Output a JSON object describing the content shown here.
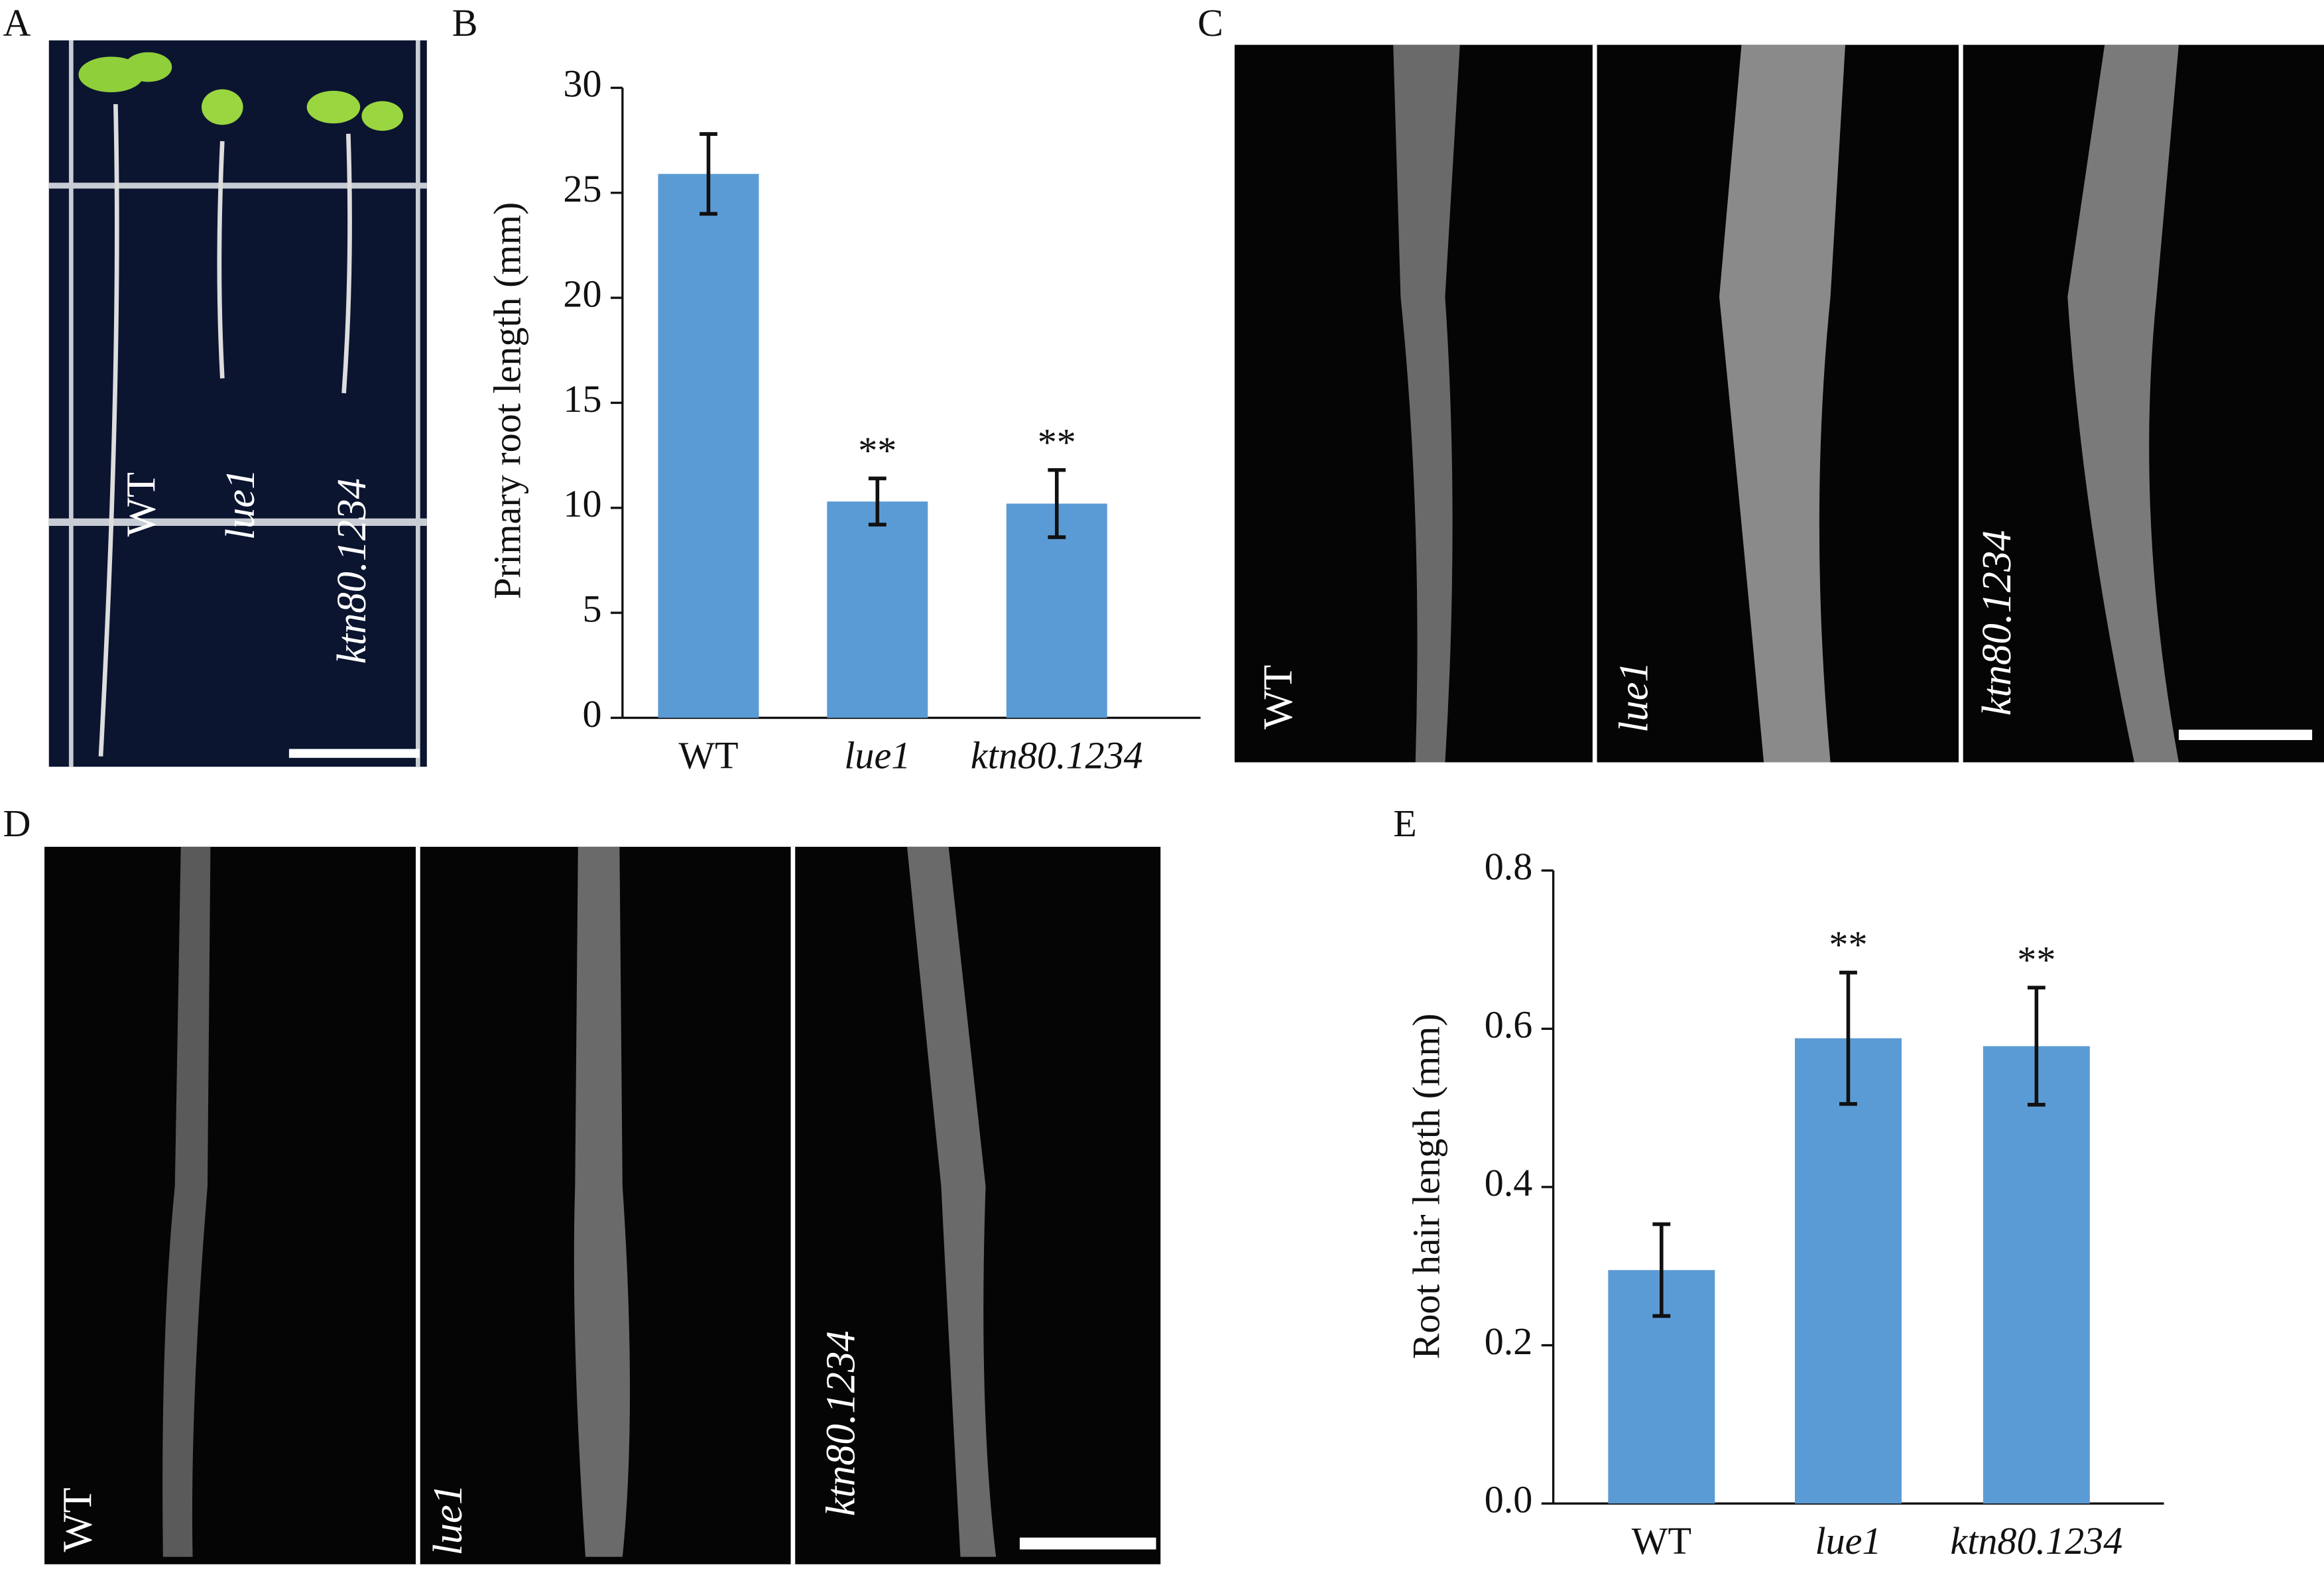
{
  "photo_panels": [
    {
      "letter": "A",
      "labels": [
        "WT",
        "lue1",
        "ktn80.1234"
      ]
    },
    {
      "letter": "C",
      "labels": [
        "WT",
        "lue1",
        "ktn80.1234"
      ]
    },
    {
      "letter": "D",
      "labels": [
        "WT",
        "lue1",
        "ktn80.1234"
      ]
    }
  ],
  "chart_data": [
    {
      "type": "bar",
      "panel": "B",
      "y_label": "Primary root length (mm)",
      "categories": [
        "WT",
        "lue1",
        "ktn80.1234"
      ],
      "values": [
        25.9,
        10.3,
        10.2
      ],
      "errors": [
        1.9,
        1.1,
        1.6
      ],
      "significance": [
        null,
        "**",
        "**"
      ],
      "color": "#5b9bd5",
      "ylim": [
        0,
        30
      ],
      "yticks": [
        0,
        5,
        10,
        15,
        20,
        25,
        30
      ],
      "grid": false
    },
    {
      "type": "bar",
      "panel": "E",
      "y_label": "Root hair length (mm)",
      "categories": [
        "WT",
        "lue1",
        "ktn80.1234"
      ],
      "values": [
        0.295,
        0.588,
        0.578
      ],
      "errors": [
        0.058,
        0.083,
        0.074
      ],
      "significance": [
        null,
        "**",
        "**"
      ],
      "color": "#5b9bd5",
      "ylim": [
        0,
        0.8
      ],
      "yticks": [
        {
          "value": 0,
          "label": "0.0"
        },
        0.2,
        0.4,
        0.6,
        0.8
      ],
      "grid": false
    }
  ]
}
